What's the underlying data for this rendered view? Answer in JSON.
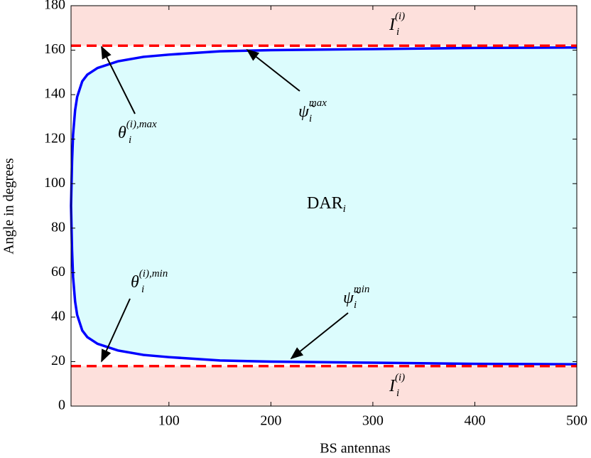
{
  "chart_data": {
    "type": "line",
    "xlabel": "BS antennas",
    "ylabel": "Angle in degrees",
    "x": [
      4,
      5,
      6,
      8,
      10,
      15,
      20,
      30,
      50,
      75,
      100,
      150,
      200,
      300,
      400,
      500
    ],
    "series": [
      {
        "color": "#0000ff",
        "values": [
          90,
          110,
          122,
          133,
          139,
          146,
          149,
          152,
          155,
          157,
          158,
          159.5,
          160,
          160.5,
          161,
          161.2
        ]
      },
      {
        "color": "#0000ff",
        "values": [
          90,
          70,
          58,
          47,
          41,
          34,
          31,
          28,
          25,
          23,
          22,
          20.5,
          20,
          19.5,
          19,
          18.8
        ]
      }
    ],
    "bounds": {
      "color": "#ff0000",
      "values": [
        18,
        162
      ]
    },
    "inner_color": "#dcfcfd",
    "outer_color": "#fde0dc",
    "xlim": [
      4,
      500
    ],
    "ylim": [
      0,
      180
    ],
    "xticks": [
      100,
      200,
      300,
      400,
      500
    ],
    "yticks": [
      0,
      20,
      40,
      60,
      80,
      100,
      120,
      140,
      160,
      180
    ],
    "annotations": [
      {
        "base": "θ",
        "sub": "i",
        "sup": "(i),max"
      },
      {
        "base": "ψ̃",
        "sub": "i",
        "sup": "max"
      },
      {
        "base": "θ",
        "sub": "i",
        "sup": "(i),min"
      },
      {
        "base": "ψ̃",
        "sub": "i",
        "sup": "min"
      },
      {
        "base": "DAR",
        "sub": "i"
      },
      {
        "base": "I",
        "sub": "i",
        "sup": "(i)"
      },
      {
        "base": "I",
        "sub": "i",
        "sup": "(i)"
      }
    ]
  }
}
